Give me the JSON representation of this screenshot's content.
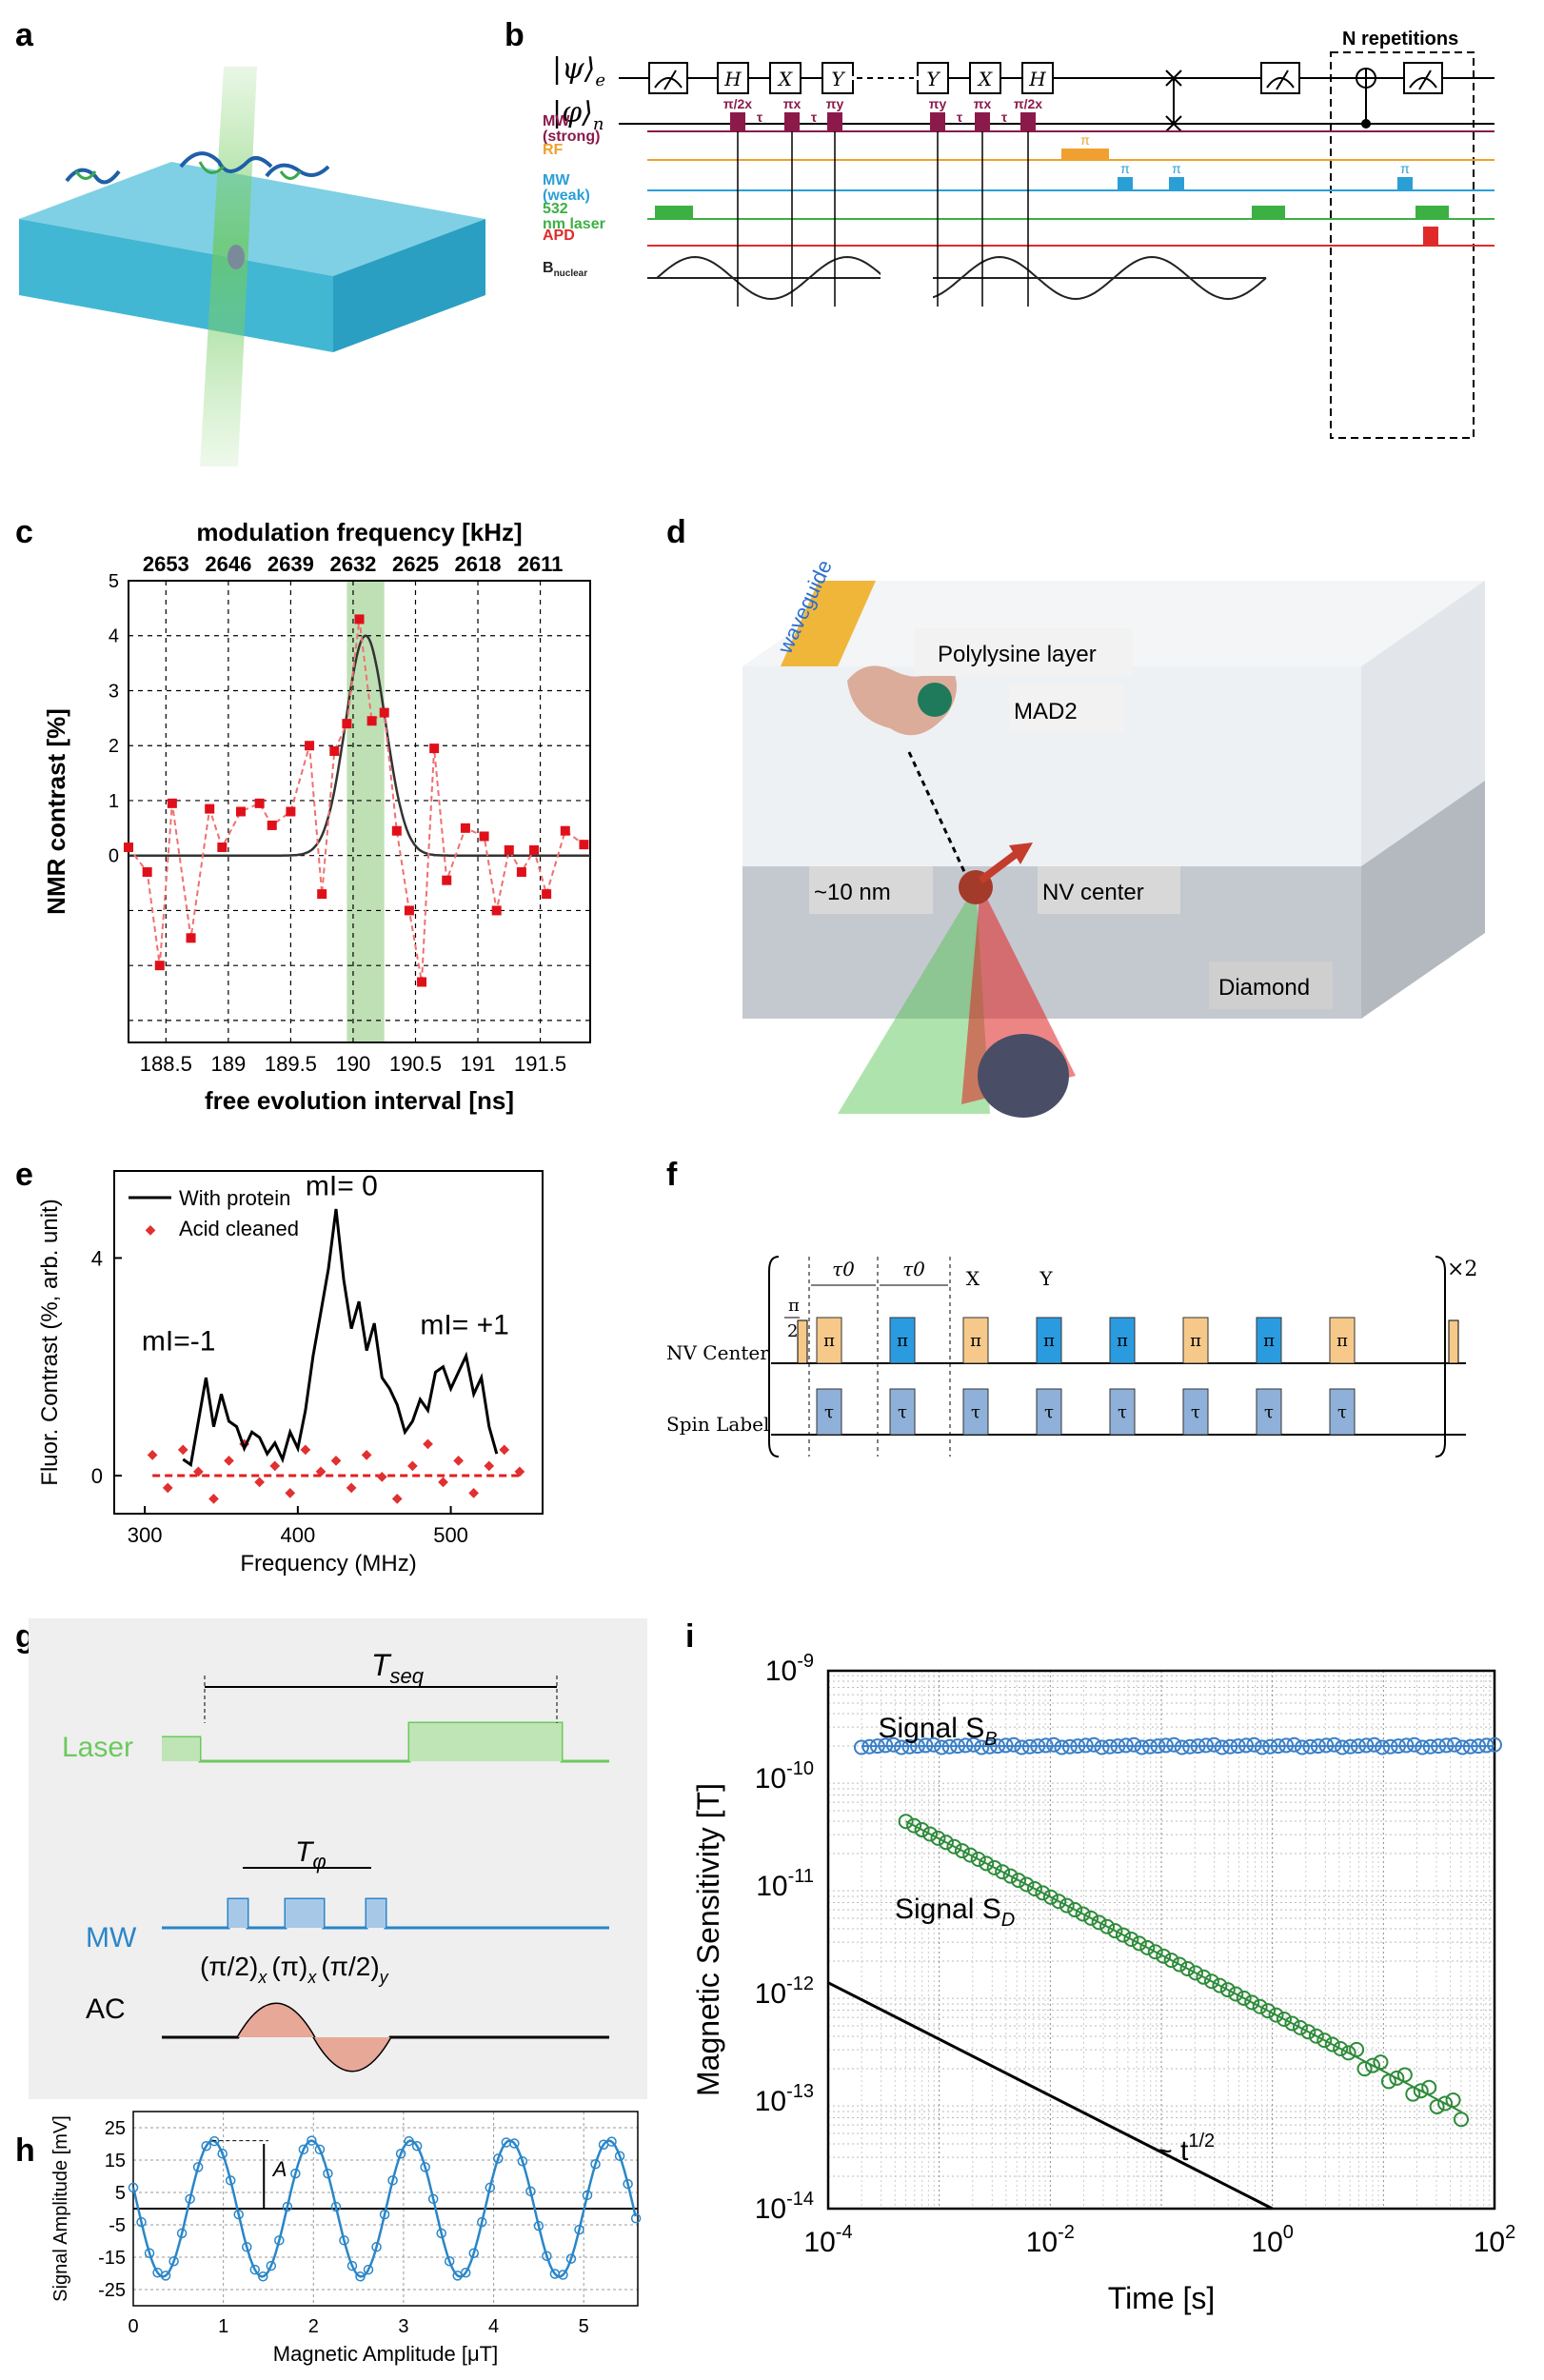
{
  "labels": {
    "a": "a",
    "b": "b",
    "c": "c",
    "d": "d",
    "e": "e",
    "f": "f",
    "g": "g",
    "h": "h",
    "i": "i"
  },
  "panel_b": {
    "psi_e": "|ψ⟩",
    "psi_e_sub": "e",
    "phi_n": "|φ⟩",
    "phi_n_sub": "n",
    "gates": [
      "H",
      "X",
      "Y",
      "Y",
      "X",
      "H"
    ],
    "repetitions": "N repetitions",
    "pulse_labels": [
      "π/2x",
      "τ",
      "πx",
      "τ",
      "πy",
      "πy",
      "τ",
      "πx",
      "τ",
      "π/2x"
    ],
    "rows": [
      {
        "name": "MW (strong)",
        "color": "#8b1a4a"
      },
      {
        "name": "RF",
        "color": "#f0a030"
      },
      {
        "name": "MW (weak)",
        "color": "#2a9fd6"
      },
      {
        "name": "532 nm laser",
        "color": "#3cb043"
      },
      {
        "name": "APD",
        "color": "#e02a2a"
      },
      {
        "name": "B",
        "sub": "nuclear",
        "color": "#222222"
      }
    ],
    "rf_pulse_label": "π",
    "weak_pulse_labels": [
      "π",
      "π",
      "π"
    ]
  },
  "chart_c": {
    "type": "scatter",
    "title": "modulation frequency [kHz]",
    "xlabel": "free evolution interval [ns]",
    "ylabel": "NMR contrast [%]",
    "xlim": [
      188.2,
      191.9
    ],
    "ylim": [
      -3.4,
      5
    ],
    "xticks": [
      188.5,
      189,
      189.5,
      190,
      190.5,
      191,
      191.5
    ],
    "xtick_labels": [
      "188.5",
      "189",
      "189.5",
      "190",
      "190.5",
      "191",
      "191.5"
    ],
    "top_tick_labels": [
      "2653",
      "2646",
      "2639",
      "2632",
      "2625",
      "2618",
      "2611"
    ],
    "yticks": [
      0,
      1,
      2,
      3,
      4,
      5
    ],
    "ytick_labels": [
      "0",
      "1",
      "2",
      "3",
      "4",
      "5"
    ],
    "highlight": [
      189.95,
      190.25
    ],
    "x": [
      188.2,
      188.35,
      188.45,
      188.55,
      188.7,
      188.85,
      188.95,
      189.1,
      189.25,
      189.35,
      189.5,
      189.65,
      189.75,
      189.85,
      189.95,
      190.05,
      190.15,
      190.25,
      190.35,
      190.45,
      190.55,
      190.65,
      190.75,
      190.9,
      191.05,
      191.15,
      191.25,
      191.35,
      191.45,
      191.55,
      191.7,
      191.85
    ],
    "y": [
      0.15,
      -0.3,
      -2.0,
      0.95,
      -1.5,
      0.85,
      0.15,
      0.8,
      0.95,
      0.55,
      0.8,
      2.0,
      -0.7,
      1.9,
      2.4,
      4.3,
      2.45,
      2.6,
      0.45,
      -1.0,
      -2.3,
      1.95,
      -0.45,
      0.5,
      0.35,
      -1.0,
      0.1,
      -0.3,
      0.1,
      -0.7,
      0.45,
      0.2
    ],
    "fit_center": 190.1,
    "fit_amplitude": 4.0,
    "fit_sigma": 0.16
  },
  "panel_d": {
    "labels": [
      "waveguide",
      "Polylysine layer",
      "MAD2",
      "~10 nm",
      "NV center",
      "Diamond"
    ]
  },
  "chart_e": {
    "type": "line",
    "xlabel": "Frequency (MHz)",
    "ylabel": "Fluor. Contrast (%, arb. unit)",
    "xlim": [
      280,
      560
    ],
    "ylim": [
      -0.7,
      5.6
    ],
    "xticks": [
      300,
      400,
      500
    ],
    "xtick_labels": [
      "300",
      "400",
      "500"
    ],
    "yticks": [
      0,
      4
    ],
    "ytick_labels": [
      "0",
      "4"
    ],
    "legend": [
      "With protein",
      "Acid cleaned"
    ],
    "annotations": [
      "mI= 0",
      "mI=-1",
      "mI= +1"
    ],
    "series": [
      {
        "name": "With protein",
        "x": [
          325,
          330,
          335,
          340,
          345,
          350,
          355,
          360,
          365,
          370,
          375,
          380,
          385,
          390,
          395,
          400,
          405,
          410,
          415,
          420,
          425,
          430,
          435,
          440,
          445,
          450,
          455,
          460,
          465,
          470,
          475,
          480,
          485,
          490,
          495,
          500,
          505,
          510,
          515,
          520,
          525,
          530
        ],
        "y": [
          0.3,
          0.2,
          1.0,
          1.8,
          0.9,
          1.5,
          1.0,
          0.9,
          0.5,
          0.8,
          0.7,
          0.4,
          0.6,
          0.3,
          0.8,
          0.5,
          1.2,
          2.2,
          3.0,
          3.8,
          4.9,
          3.6,
          2.7,
          3.2,
          2.3,
          2.8,
          1.8,
          1.6,
          1.3,
          0.8,
          1.0,
          1.4,
          1.2,
          1.9,
          2.0,
          1.6,
          1.9,
          2.2,
          1.5,
          1.8,
          0.9,
          0.4
        ]
      },
      {
        "name": "Acid cleaned",
        "x": [
          305,
          315,
          325,
          335,
          345,
          355,
          365,
          375,
          385,
          395,
          405,
          415,
          425,
          435,
          445,
          455,
          465,
          475,
          485,
          495,
          505,
          515,
          525,
          535,
          545
        ],
        "y": [
          0.4,
          -0.2,
          0.5,
          0.1,
          -0.4,
          0.3,
          0.6,
          -0.1,
          0.2,
          -0.3,
          0.5,
          0.1,
          0.3,
          -0.2,
          0.4,
          0.0,
          -0.4,
          0.2,
          0.6,
          -0.1,
          0.3,
          -0.3,
          0.2,
          0.5,
          0.1
        ]
      }
    ]
  },
  "panel_f": {
    "tau0": "τ0",
    "x_label": "X",
    "y_label": "Y",
    "repeat": "×2",
    "pi": "π",
    "pi_half_num": "π",
    "pi_half_den": "2",
    "tau": "τ",
    "row_labels": [
      "NV Center",
      "Spin Label"
    ],
    "nv_pulse_colors": [
      "#f6c98a",
      "#2b9be0",
      "#f6c98a",
      "#2b9be0",
      "#2b9be0",
      "#f6c98a",
      "#2b9be0",
      "#f6c98a"
    ]
  },
  "panel_g": {
    "laser": "Laser",
    "mw": "MW",
    "ac": "AC",
    "tseq": "T",
    "tseq_sub": "seq",
    "tphi": "T",
    "tphi_sub": "φ",
    "pulses": [
      "(π/2)",
      "x",
      "(π)",
      "x",
      "(π/2)",
      "y"
    ]
  },
  "chart_h": {
    "type": "line",
    "xlabel": "Magnetic Amplitude [μT]",
    "ylabel": "Signal Amplitude [mV]",
    "xlim": [
      0,
      5.6
    ],
    "ylim": [
      -30,
      30
    ],
    "xticks": [
      0,
      1,
      2,
      3,
      4,
      5
    ],
    "xtick_labels": [
      "0",
      "1",
      "2",
      "3",
      "4",
      "5"
    ],
    "yticks": [
      25,
      15,
      5,
      -5,
      -15,
      -25
    ],
    "ytick_labels": [
      "25",
      "15",
      "5",
      "-5",
      "-15",
      "-25"
    ],
    "amplitude_label": "A",
    "amplitude": 21,
    "period": 1.1,
    "phase_peak": 0.88
  },
  "chart_i": {
    "type": "scatter",
    "xlabel": "Time [s]",
    "ylabel": "Magnetic Sensitivity [T]",
    "xlim_log10": [
      -4,
      2
    ],
    "ylim_log10": [
      -14,
      -9
    ],
    "xtick_exps": [
      "-4",
      "-2",
      "0",
      "2"
    ],
    "ytick_exps": [
      "-9",
      "-10",
      "-11",
      "-12",
      "-13",
      "-14"
    ],
    "tick_base": "10",
    "series": [
      {
        "name": "Signal S_B",
        "label": "Signal S",
        "label_sub": "B",
        "color": "#3a7fc8",
        "start_log10_t": -3.7,
        "end_log10_t": 2,
        "log10_value": -9.7
      },
      {
        "name": "Signal S_D",
        "label": "Signal S",
        "label_sub": "D",
        "color": "#2e8b3a",
        "start_log10_t": -3.3,
        "start_log10_value": -10.4,
        "end_log10_t": 1.7,
        "end_log10_value": -13.1
      }
    ],
    "reference_label": "~ t",
    "reference_exp": "1/2",
    "reference_line": {
      "start_log10_t": -4,
      "start_log10_value": -11.9,
      "end_log10_t": 0,
      "end_log10_value": -14
    }
  }
}
